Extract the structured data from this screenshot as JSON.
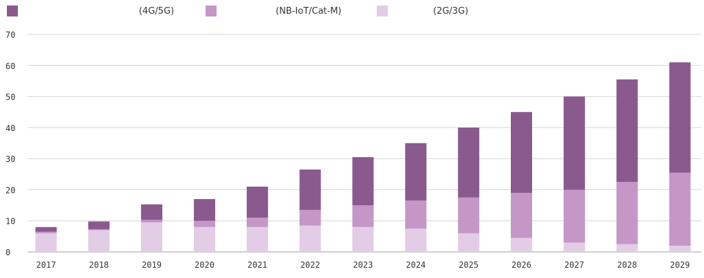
{
  "chart_data": {
    "type": "bar",
    "stacked": true,
    "categories": [
      "2017",
      "2018",
      "2019",
      "2020",
      "2021",
      "2022",
      "2023",
      "2024",
      "2025",
      "2026",
      "2027",
      "2028",
      "2029"
    ],
    "series": [
      {
        "name": "(2G/3G)",
        "color": "#e3cce5",
        "values": [
          6,
          7,
          9.5,
          8,
          8,
          8.5,
          8,
          7.5,
          6,
          4.5,
          3,
          2.5,
          2
        ]
      },
      {
        "name": "(NB-IoT/Cat-M)",
        "color": "#c497c7",
        "values": [
          0.5,
          0.3,
          0.8,
          2,
          3,
          5,
          7,
          9,
          11.5,
          14.5,
          17,
          20,
          23.5
        ]
      },
      {
        "name": "(4G/5G)",
        "color": "#8a5a8e",
        "values": [
          1.5,
          2.5,
          5,
          7,
          10,
          13,
          15.5,
          18.5,
          22.5,
          26,
          30,
          33,
          35.5
        ]
      }
    ],
    "ylim": [
      0,
      70
    ],
    "yticks": [
      0,
      10,
      20,
      30,
      40,
      50,
      60,
      70
    ],
    "grid": true,
    "legend": "top-left",
    "title": "",
    "xlabel": "",
    "ylabel": ""
  }
}
